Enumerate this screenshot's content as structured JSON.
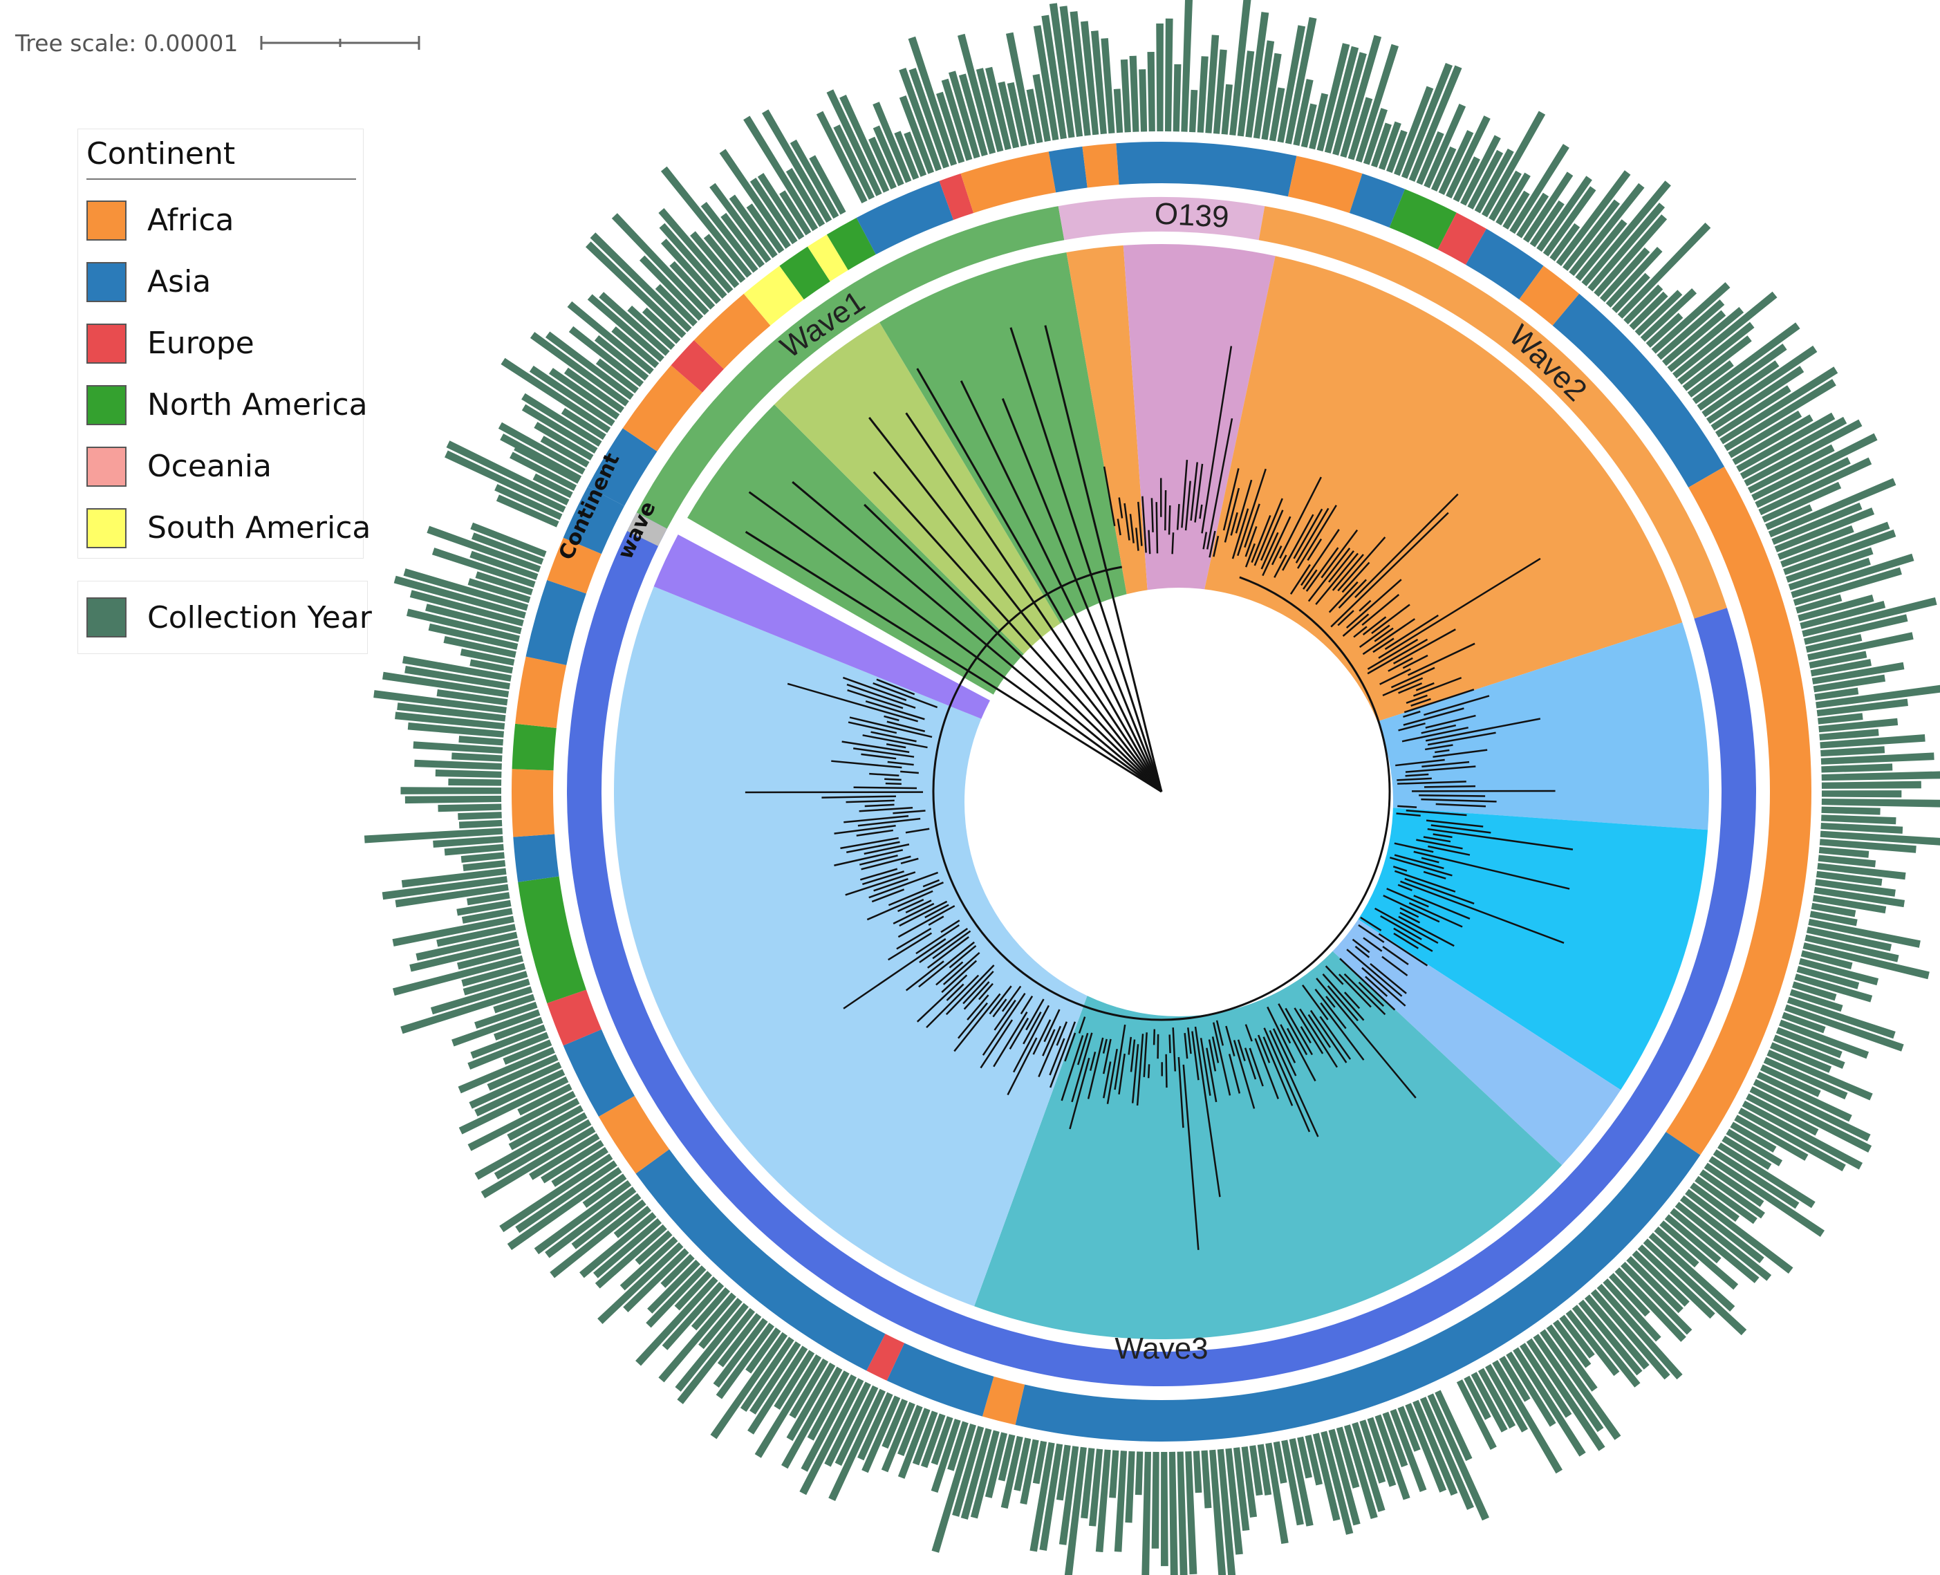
{
  "tree_scale": {
    "label": "Tree scale: 0.00001"
  },
  "legend": {
    "title": "Continent",
    "items": [
      {
        "label": "Africa",
        "color": "#f7923a"
      },
      {
        "label": "Asia",
        "color": "#2b7bb9"
      },
      {
        "label": "Europe",
        "color": "#e84c4f"
      },
      {
        "label": "North America",
        "color": "#34a12f"
      },
      {
        "label": "Oceania",
        "color": "#f7a09b"
      },
      {
        "label": "South America",
        "color": "#ffff66"
      }
    ],
    "collection_year": {
      "label": "Collection Year",
      "color": "#4a7a64"
    }
  },
  "ring_labels": {
    "continent": "Continent",
    "wave": "wave"
  },
  "clade_labels": [
    {
      "name": "wave1",
      "text": "Wave1"
    },
    {
      "name": "o139",
      "text": "O139"
    },
    {
      "name": "wave2",
      "text": "Wave2"
    },
    {
      "name": "wave3",
      "text": "Wave3"
    }
  ],
  "chart_data": {
    "type": "circular-phylogenetic-tree",
    "tree_scale": "0.00001",
    "rings": [
      "wave",
      "Continent",
      "Collection Year"
    ],
    "waves": [
      {
        "name": "Wave1",
        "start_deg": -62,
        "end_deg": -10,
        "color": "#66b266"
      },
      {
        "name": "O139",
        "start_deg": -10,
        "end_deg": 10,
        "color": "#e0b4d8"
      },
      {
        "name": "Wave2",
        "start_deg": 10,
        "end_deg": 72,
        "color": "#f6a24e"
      },
      {
        "name": "Wave3",
        "start_deg": 72,
        "end_deg": 298,
        "color": "#4f6fe0"
      }
    ],
    "clade_wedges": [
      {
        "start_deg": -60,
        "end_deg": -45,
        "color": "#66b266"
      },
      {
        "start_deg": -45,
        "end_deg": -31,
        "color": "#b3d06e"
      },
      {
        "start_deg": -31,
        "end_deg": -10,
        "color": "#66b266"
      },
      {
        "start_deg": -10,
        "end_deg": -4,
        "color": "#f6a24e"
      },
      {
        "start_deg": -4,
        "end_deg": 12,
        "color": "#d7a0cf"
      },
      {
        "start_deg": 12,
        "end_deg": 72,
        "color": "#f6a24e"
      },
      {
        "start_deg": 72,
        "end_deg": 94,
        "color": "#7cc3f7"
      },
      {
        "start_deg": 94,
        "end_deg": 123,
        "color": "#21c4f7"
      },
      {
        "start_deg": 123,
        "end_deg": 133,
        "color": "#8ec2f7"
      },
      {
        "start_deg": 133,
        "end_deg": 200,
        "color": "#56bfcc"
      },
      {
        "start_deg": 200,
        "end_deg": 292,
        "color": "#a2d4f7"
      },
      {
        "start_deg": 292,
        "end_deg": 298,
        "color": "#9a7ef5"
      }
    ],
    "continent_ring": [
      {
        "start_deg": -62,
        "end_deg": -56,
        "continent": "Asia"
      },
      {
        "start_deg": -56,
        "end_deg": -49,
        "continent": "Africa"
      },
      {
        "start_deg": -49,
        "end_deg": -46,
        "continent": "Europe"
      },
      {
        "start_deg": -46,
        "end_deg": -40,
        "continent": "Africa"
      },
      {
        "start_deg": -40,
        "end_deg": -36,
        "continent": "South America"
      },
      {
        "start_deg": -36,
        "end_deg": -33,
        "continent": "North America"
      },
      {
        "start_deg": -33,
        "end_deg": -31,
        "continent": "South America"
      },
      {
        "start_deg": -31,
        "end_deg": -28,
        "continent": "North America"
      },
      {
        "start_deg": -28,
        "end_deg": -20,
        "continent": "Asia"
      },
      {
        "start_deg": -20,
        "end_deg": -18,
        "continent": "Europe"
      },
      {
        "start_deg": -18,
        "end_deg": -10,
        "continent": "Africa"
      },
      {
        "start_deg": -10,
        "end_deg": -7,
        "continent": "Asia"
      },
      {
        "start_deg": -7,
        "end_deg": -4,
        "continent": "Africa"
      },
      {
        "start_deg": -4,
        "end_deg": 12,
        "continent": "Asia"
      },
      {
        "start_deg": 12,
        "end_deg": 18,
        "continent": "Africa"
      },
      {
        "start_deg": 18,
        "end_deg": 22,
        "continent": "Asia"
      },
      {
        "start_deg": 22,
        "end_deg": 27,
        "continent": "North America"
      },
      {
        "start_deg": 27,
        "end_deg": 30,
        "continent": "Europe"
      },
      {
        "start_deg": 30,
        "end_deg": 36,
        "continent": "Asia"
      },
      {
        "start_deg": 36,
        "end_deg": 40,
        "continent": "Africa"
      },
      {
        "start_deg": 40,
        "end_deg": 60,
        "continent": "Asia"
      },
      {
        "start_deg": 60,
        "end_deg": 124,
        "continent": "Africa"
      },
      {
        "start_deg": 124,
        "end_deg": 193,
        "continent": "Asia"
      },
      {
        "start_deg": 193,
        "end_deg": 196,
        "continent": "Africa"
      },
      {
        "start_deg": 196,
        "end_deg": 205,
        "continent": "Asia"
      },
      {
        "start_deg": 205,
        "end_deg": 207,
        "continent": "Europe"
      },
      {
        "start_deg": 207,
        "end_deg": 234,
        "continent": "Asia"
      },
      {
        "start_deg": 234,
        "end_deg": 240,
        "continent": "Africa"
      },
      {
        "start_deg": 240,
        "end_deg": 247,
        "continent": "Asia"
      },
      {
        "start_deg": 247,
        "end_deg": 251,
        "continent": "Europe"
      },
      {
        "start_deg": 251,
        "end_deg": 262,
        "continent": "North America"
      },
      {
        "start_deg": 262,
        "end_deg": 266,
        "continent": "Asia"
      },
      {
        "start_deg": 266,
        "end_deg": 272,
        "continent": "Africa"
      },
      {
        "start_deg": 272,
        "end_deg": 276,
        "continent": "North America"
      },
      {
        "start_deg": 276,
        "end_deg": 282,
        "continent": "Africa"
      },
      {
        "start_deg": 282,
        "end_deg": 289,
        "continent": "Asia"
      },
      {
        "start_deg": 289,
        "end_deg": 293,
        "continent": "Africa"
      },
      {
        "start_deg": 293,
        "end_deg": 298,
        "continent": "Asia"
      }
    ],
    "collection_year_bars": "per-leaf bar heights encode collection year"
  }
}
